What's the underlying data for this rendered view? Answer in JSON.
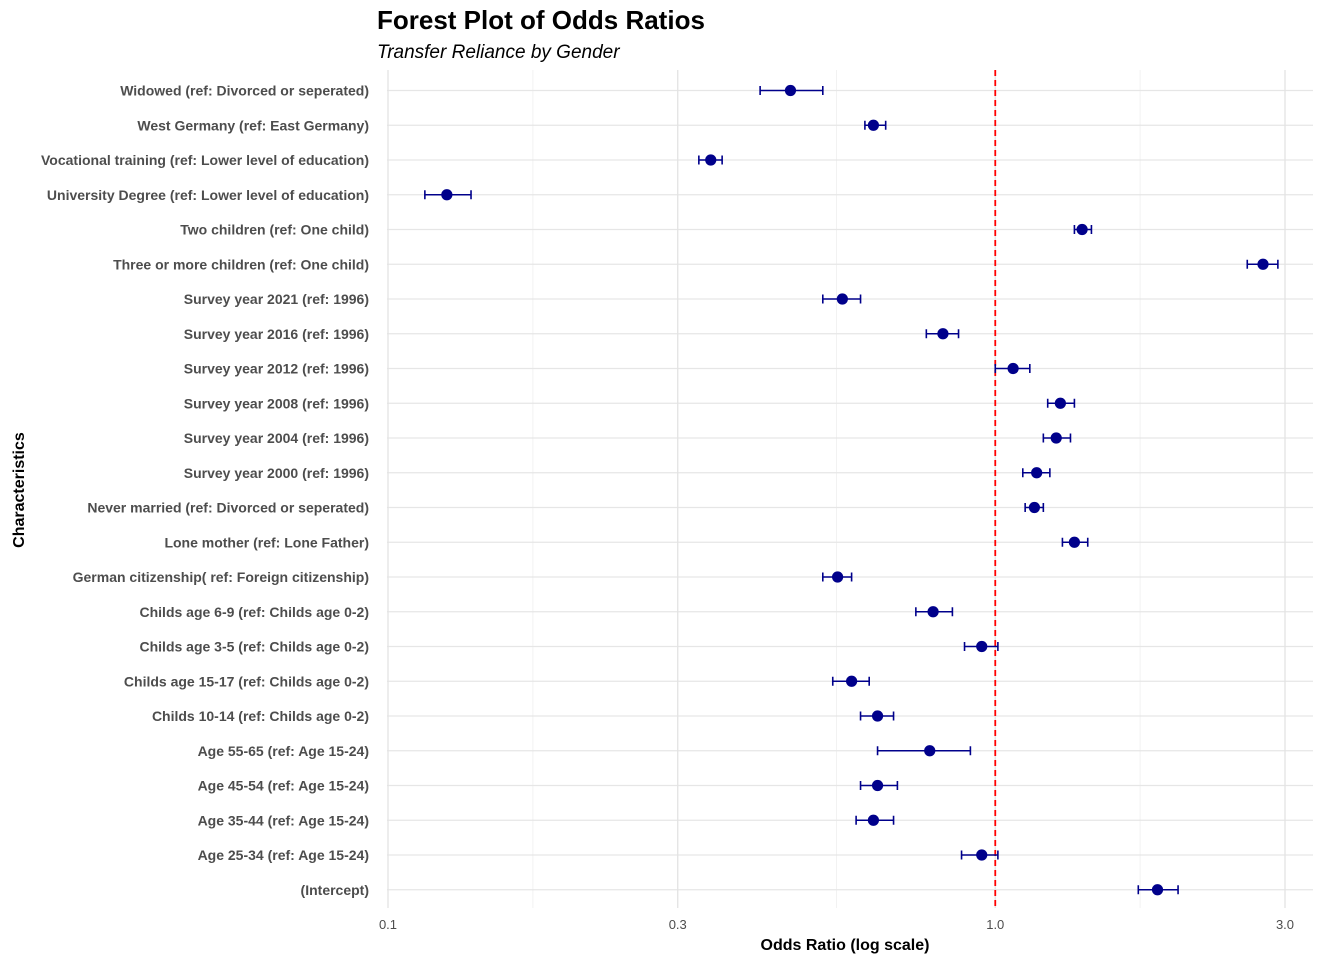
{
  "chart_data": {
    "type": "forest",
    "title": "Forest Plot of Odds Ratios",
    "subtitle": "Transfer Reliance by Gender",
    "xlabel": "Odds Ratio (log scale)",
    "ylabel": "Characteristics",
    "x_scale": "log",
    "xlim": [
      0.1,
      3.3
    ],
    "x_ticks": [
      {
        "value": 0.1,
        "label": "0.1"
      },
      {
        "value": 0.3,
        "label": "0.3"
      },
      {
        "value": 1.0,
        "label": "1.0"
      },
      {
        "value": 3.0,
        "label": "3.0"
      }
    ],
    "reference_line": {
      "value": 1.0,
      "color": "#ff0000",
      "style": "dashed"
    },
    "point_color": "#00008b",
    "grid": true,
    "rows": [
      {
        "label": "Widowed (ref: Divorced or seperated)",
        "or": 0.46,
        "low": 0.41,
        "high": 0.52
      },
      {
        "label": "West Germany (ref: East Germany)",
        "or": 0.63,
        "low": 0.61,
        "high": 0.66
      },
      {
        "label": "Vocational training (ref: Lower level of education)",
        "or": 0.34,
        "low": 0.325,
        "high": 0.355
      },
      {
        "label": "University Degree (ref: Lower level of education)",
        "or": 0.125,
        "low": 0.115,
        "high": 0.137
      },
      {
        "label": "Two children (ref: One child)",
        "or": 1.39,
        "low": 1.35,
        "high": 1.44
      },
      {
        "label": "Three or more children (ref: One child)",
        "or": 2.76,
        "low": 2.6,
        "high": 2.92
      },
      {
        "label": "Survey year 2021 (ref: 1996)",
        "or": 0.56,
        "low": 0.52,
        "high": 0.6
      },
      {
        "label": "Survey year 2016 (ref: 1996)",
        "or": 0.82,
        "low": 0.77,
        "high": 0.87
      },
      {
        "label": "Survey year 2012 (ref: 1996)",
        "or": 1.07,
        "low": 1.0,
        "high": 1.14
      },
      {
        "label": "Survey year 2008 (ref: 1996)",
        "or": 1.28,
        "low": 1.22,
        "high": 1.35
      },
      {
        "label": "Survey year 2004 (ref: 1996)",
        "or": 1.26,
        "low": 1.2,
        "high": 1.33
      },
      {
        "label": "Survey year 2000 (ref: 1996)",
        "or": 1.17,
        "low": 1.11,
        "high": 1.23
      },
      {
        "label": "Never married (ref: Divorced or seperated)",
        "or": 1.16,
        "low": 1.12,
        "high": 1.2
      },
      {
        "label": "Lone mother (ref: Lone Father)",
        "or": 1.35,
        "low": 1.29,
        "high": 1.42
      },
      {
        "label": "German citizenship( ref: Foreign citizenship)",
        "or": 0.55,
        "low": 0.52,
        "high": 0.58
      },
      {
        "label": "Childs age 6-9 (ref: Childs age 0-2)",
        "or": 0.79,
        "low": 0.74,
        "high": 0.85
      },
      {
        "label": "Childs age 3-5 (ref: Childs age 0-2)",
        "or": 0.95,
        "low": 0.89,
        "high": 1.01
      },
      {
        "label": "Childs age 15-17 (ref: Childs age 0-2)",
        "or": 0.58,
        "low": 0.54,
        "high": 0.62
      },
      {
        "label": "Childs 10-14 (ref: Childs age 0-2)",
        "or": 0.64,
        "low": 0.6,
        "high": 0.68
      },
      {
        "label": "Age 55-65 (ref: Age 15-24)",
        "or": 0.78,
        "low": 0.64,
        "high": 0.91
      },
      {
        "label": "Age 45-54 (ref: Age 15-24)",
        "or": 0.64,
        "low": 0.6,
        "high": 0.69
      },
      {
        "label": "Age 35-44 (ref: Age 15-24)",
        "or": 0.63,
        "low": 0.59,
        "high": 0.68
      },
      {
        "label": "Age 25-34 (ref: Age 15-24)",
        "or": 0.95,
        "low": 0.88,
        "high": 1.01
      },
      {
        "label": "(Intercept)",
        "or": 1.85,
        "low": 1.72,
        "high": 2.0
      }
    ]
  }
}
